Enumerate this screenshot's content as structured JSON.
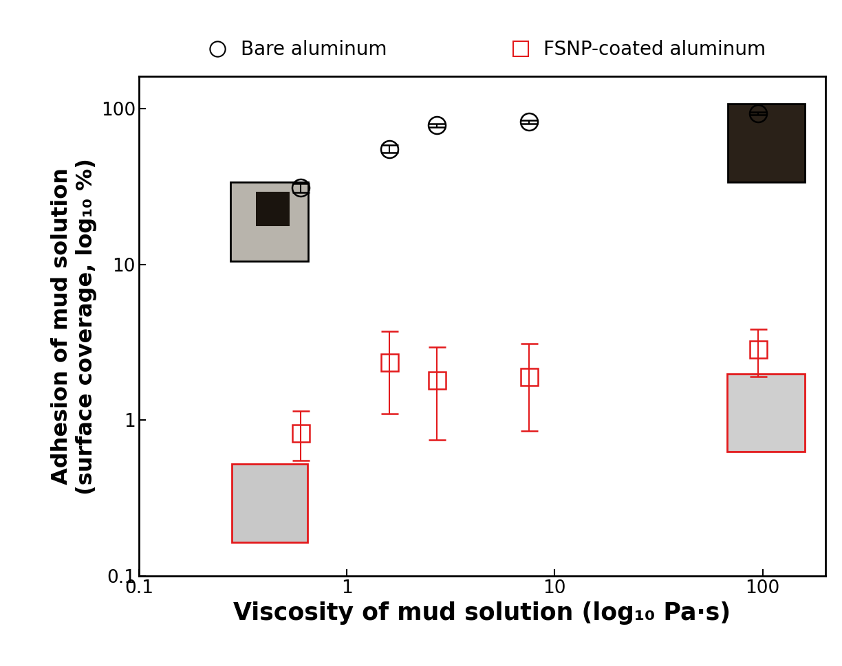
{
  "chart_data": {
    "type": "scatter",
    "x_label": "Viscosity of mud solution (log₁₀ Pa·s)",
    "y_label": "Adhesion of mud solution\n(surface coverage, log₁₀ %)",
    "log": true,
    "legend": "top",
    "xlim": [
      0.1,
      200
    ],
    "ylim": [
      0.1,
      160
    ],
    "xticks": [
      0.1,
      1,
      10,
      100
    ],
    "yticks": [
      0.1,
      1,
      10,
      100
    ],
    "series": [
      {
        "name": "Bare aluminum",
        "color": "#000000",
        "marker": "circle",
        "x": [
          0.6,
          1.6,
          2.7,
          7.5,
          95
        ],
        "values": [
          31,
          55,
          78,
          82,
          93
        ],
        "error_minus": [
          2,
          3,
          2,
          2,
          2
        ],
        "error_plus": [
          2,
          3,
          2,
          2,
          2
        ]
      },
      {
        "name": "FSNP-coated aluminum",
        "color": "#e31a1c",
        "marker": "square",
        "x": [
          0.6,
          1.6,
          2.7,
          7.5,
          95
        ],
        "values": [
          0.83,
          2.35,
          1.8,
          1.9,
          2.85
        ],
        "error_minus": [
          0.28,
          1.25,
          1.05,
          1.05,
          0.95
        ],
        "error_plus": [
          0.32,
          1.35,
          1.15,
          1.2,
          1.0
        ]
      }
    ]
  }
}
